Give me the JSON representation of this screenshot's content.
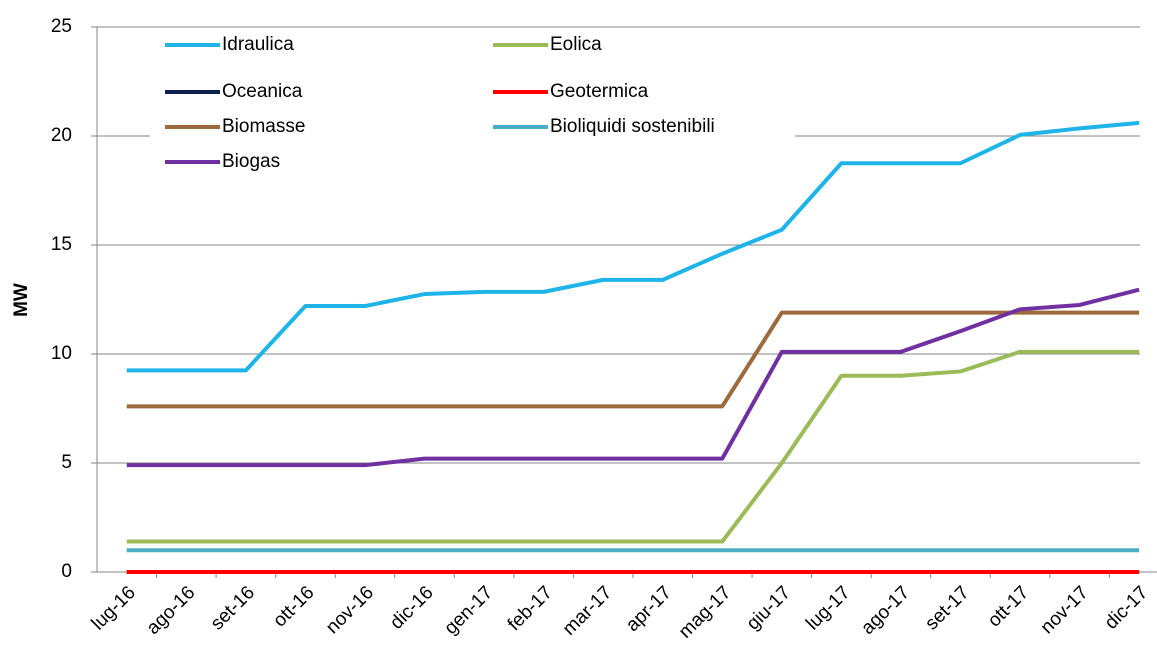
{
  "chart_data": {
    "type": "line",
    "ylabel": "MW",
    "categories": [
      "lug-16",
      "ago-16",
      "set-16",
      "ott-16",
      "nov-16",
      "dic-16",
      "gen-17",
      "feb-17",
      "mar-17",
      "apr-17",
      "mag-17",
      "giu-17",
      "lug-17",
      "ago-17",
      "set-17",
      "ott-17",
      "nov-17",
      "dic-17"
    ],
    "series": [
      {
        "name": "Idraulica",
        "color": "#1fb4e8",
        "values": [
          9.25,
          9.25,
          9.25,
          12.2,
          12.2,
          12.75,
          12.85,
          12.85,
          13.4,
          13.4,
          14.6,
          15.7,
          18.75,
          18.75,
          18.75,
          20.05,
          20.35,
          20.6
        ]
      },
      {
        "name": "Eolica",
        "color": "#9bbb59",
        "values": [
          1.4,
          1.4,
          1.4,
          1.4,
          1.4,
          1.4,
          1.4,
          1.4,
          1.4,
          1.4,
          1.4,
          5.0,
          9.0,
          9.0,
          9.2,
          10.1,
          10.1,
          10.1
        ]
      },
      {
        "name": "Oceanica",
        "color": "#0d1f4f",
        "values": [
          0,
          0,
          0,
          0,
          0,
          0,
          0,
          0,
          0,
          0,
          0,
          0,
          0,
          0,
          0,
          0,
          0,
          0
        ]
      },
      {
        "name": "Geotermica",
        "color": "#ff0000",
        "values": [
          0,
          0,
          0,
          0,
          0,
          0,
          0,
          0,
          0,
          0,
          0,
          0,
          0,
          0,
          0,
          0,
          0,
          0
        ]
      },
      {
        "name": "Biomasse",
        "color": "#9c6a3c",
        "values": [
          7.6,
          7.6,
          7.6,
          7.6,
          7.6,
          7.6,
          7.6,
          7.6,
          7.6,
          7.6,
          7.6,
          11.9,
          11.9,
          11.9,
          11.9,
          11.9,
          11.9,
          11.9
        ]
      },
      {
        "name": "Bioliquidi sostenibili",
        "color": "#4bacc6",
        "values": [
          1,
          1,
          1,
          1,
          1,
          1,
          1,
          1,
          1,
          1,
          1,
          1,
          1,
          1,
          1,
          1,
          1,
          1
        ]
      },
      {
        "name": "Biogas",
        "color": "#7030a0",
        "values": [
          4.9,
          4.9,
          4.9,
          4.9,
          4.9,
          5.2,
          5.2,
          5.2,
          5.2,
          5.2,
          5.2,
          10.1,
          10.1,
          10.1,
          11.05,
          12.05,
          12.25,
          12.95
        ]
      }
    ],
    "ylim": [
      0,
      25
    ],
    "yticks": [
      0,
      5,
      10,
      15,
      20,
      25
    ],
    "grid": true
  }
}
